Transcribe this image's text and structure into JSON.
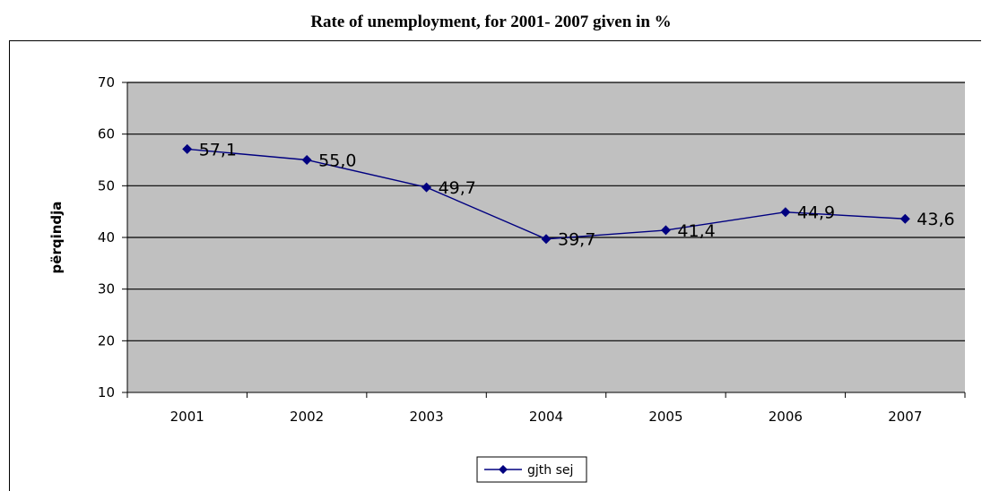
{
  "chart_data": {
    "type": "line",
    "title": "Rate of unemployment, for 2001- 2007 given in %",
    "xlabel": "",
    "ylabel": "përqindja",
    "categories": [
      "2001",
      "2002",
      "2003",
      "2004",
      "2005",
      "2006",
      "2007"
    ],
    "series": [
      {
        "name": "gjth sej",
        "values": [
          57.1,
          55.0,
          49.7,
          39.7,
          41.4,
          44.9,
          43.6
        ],
        "labels": [
          "57,1",
          "55,0",
          "49,7",
          "39,7",
          "41,4",
          "44,9",
          "43,6"
        ],
        "color": "#000080"
      }
    ],
    "ylim": [
      10,
      70
    ],
    "yticks": [
      10,
      20,
      30,
      40,
      50,
      60,
      70
    ],
    "grid": true,
    "plot_background": "#c0c0c0",
    "legend_position": "bottom"
  }
}
